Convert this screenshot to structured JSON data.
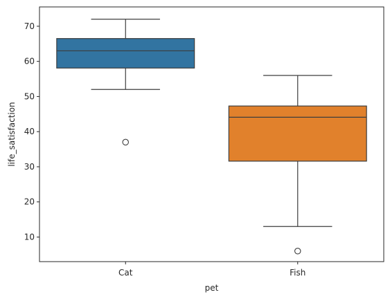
{
  "chart_data": {
    "type": "box",
    "xlabel": "pet",
    "ylabel": "life_satisfaction",
    "categories": [
      "Cat",
      "Fish"
    ],
    "colors": [
      "#3274a1",
      "#e1812c"
    ],
    "ylim": [
      3,
      75.5
    ],
    "yticks": [
      10,
      20,
      30,
      40,
      50,
      60,
      70
    ],
    "grid": false,
    "boxes": [
      {
        "category": "Cat",
        "whisker_low": 52,
        "q1": 58.1,
        "median": 63,
        "q3": 66.5,
        "whisker_high": 72,
        "outliers": [
          37
        ]
      },
      {
        "category": "Fish",
        "whisker_low": 13,
        "q1": 31.6,
        "median": 44.1,
        "q3": 47.3,
        "whisker_high": 56,
        "outliers": [
          6
        ]
      }
    ]
  }
}
